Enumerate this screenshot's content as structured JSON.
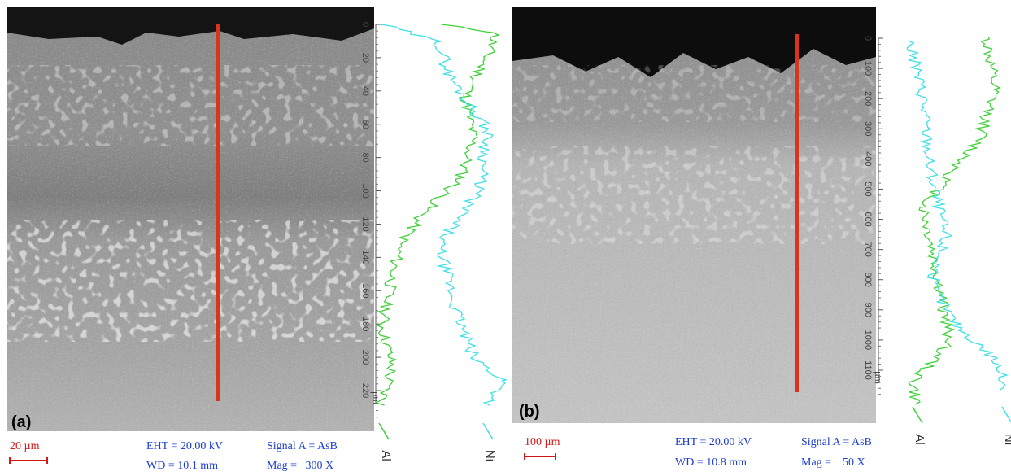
{
  "panels": [
    {
      "label": "(a)",
      "scale_bar": "20 µm",
      "eht": "EHT = 20.00 kV",
      "wd": "WD = 10.1 mm",
      "signal": "Signal A = AsB",
      "mag": "Mag =   300 X",
      "profile": {
        "ticks": [
          "0",
          "20",
          "40",
          "60",
          "80",
          "100",
          "120",
          "140",
          "160",
          "180",
          "200",
          "220"
        ],
        "unit": "µm",
        "legend": [
          "Al",
          "Ni"
        ]
      }
    },
    {
      "label": "(b)",
      "scale_bar": "100 µm",
      "eht": "EHT = 20.00 kV",
      "wd": "WD = 10.8 mm",
      "signal": "Signal A = AsB",
      "mag": "Mag =    50 X",
      "profile": {
        "ticks": [
          "0",
          "100",
          "200",
          "300",
          "400",
          "500",
          "600",
          "700",
          "800",
          "900",
          "1000",
          "1100"
        ],
        "unit": "µm",
        "legend": [
          "Al",
          "Ni"
        ]
      }
    }
  ]
}
